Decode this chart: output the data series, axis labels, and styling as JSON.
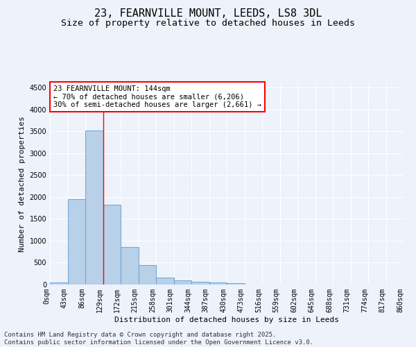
{
  "title_line1": "23, FEARNVILLE MOUNT, LEEDS, LS8 3DL",
  "title_line2": "Size of property relative to detached houses in Leeds",
  "xlabel": "Distribution of detached houses by size in Leeds",
  "ylabel": "Number of detached properties",
  "annotation_title": "23 FEARNVILLE MOUNT: 144sqm",
  "annotation_line2": "← 70% of detached houses are smaller (6,206)",
  "annotation_line3": "30% of semi-detached houses are larger (2,661) →",
  "footer_line1": "Contains HM Land Registry data © Crown copyright and database right 2025.",
  "footer_line2": "Contains public sector information licensed under the Open Government Licence v3.0.",
  "bar_values": [
    50,
    1950,
    3520,
    1820,
    850,
    450,
    160,
    100,
    60,
    55,
    30,
    0,
    0,
    0,
    0,
    0,
    0,
    0,
    0,
    0
  ],
  "bin_labels": [
    "0sqm",
    "43sqm",
    "86sqm",
    "129sqm",
    "172sqm",
    "215sqm",
    "258sqm",
    "301sqm",
    "344sqm",
    "387sqm",
    "430sqm",
    "473sqm",
    "516sqm",
    "559sqm",
    "602sqm",
    "645sqm",
    "688sqm",
    "731sqm",
    "774sqm",
    "817sqm",
    "860sqm"
  ],
  "bar_color": "#b8d0e8",
  "bar_edge_color": "#5b9bd5",
  "vline_x": 3,
  "vline_color": "red",
  "ylim": [
    0,
    4600
  ],
  "yticks": [
    0,
    500,
    1000,
    1500,
    2000,
    2500,
    3000,
    3500,
    4000,
    4500
  ],
  "background_color": "#eef2fa",
  "grid_color": "#ffffff",
  "title_fontsize": 11,
  "subtitle_fontsize": 9.5,
  "axis_label_fontsize": 8,
  "tick_fontsize": 7,
  "annotation_fontsize": 7.5,
  "footer_fontsize": 6.5
}
